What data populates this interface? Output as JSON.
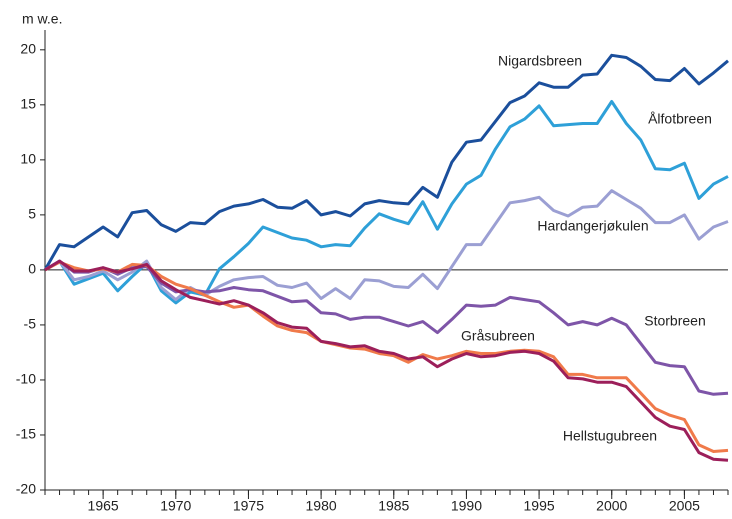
{
  "chart_data": {
    "type": "line",
    "y_label": "m w.e.",
    "x": [
      1961,
      1962,
      1963,
      1964,
      1965,
      1966,
      1967,
      1968,
      1969,
      1970,
      1971,
      1972,
      1973,
      1974,
      1975,
      1976,
      1977,
      1978,
      1979,
      1980,
      1981,
      1982,
      1983,
      1984,
      1985,
      1986,
      1987,
      1988,
      1989,
      1990,
      1991,
      1992,
      1993,
      1994,
      1995,
      1996,
      1997,
      1998,
      1999,
      2000,
      2001,
      2002,
      2003,
      2004,
      2005,
      2006,
      2007,
      2008
    ],
    "xlim": [
      1961,
      2008
    ],
    "xticks": [
      1965,
      1970,
      1975,
      1980,
      1985,
      1990,
      1995,
      2000,
      2005
    ],
    "ylim": [
      -20,
      21.8
    ],
    "yticks": [
      -20,
      -15,
      -10,
      -5,
      0,
      5,
      10,
      15,
      20
    ],
    "series": [
      {
        "name": "Nigardsbreen",
        "color": "#1b4f9c",
        "values": [
          0,
          2.3,
          2.1,
          3.0,
          3.9,
          3.0,
          5.2,
          5.4,
          4.1,
          3.5,
          4.3,
          4.2,
          5.3,
          5.8,
          6.0,
          6.4,
          5.7,
          5.6,
          6.3,
          5.0,
          5.3,
          4.9,
          6.0,
          6.3,
          6.1,
          6.0,
          7.5,
          6.6,
          9.8,
          11.6,
          11.8,
          13.5,
          15.2,
          15.8,
          17.0,
          16.6,
          16.6,
          17.7,
          17.8,
          19.5,
          19.3,
          18.5,
          17.3,
          17.2,
          18.3,
          16.9,
          17.9,
          19.0
        ]
      },
      {
        "name": "Ålfotbreen",
        "color": "#2ea0d8",
        "values": [
          0,
          0.8,
          -1.3,
          -0.8,
          -0.3,
          -1.9,
          -0.6,
          0.6,
          -1.9,
          -3.0,
          -2.0,
          -2.3,
          0.1,
          1.2,
          2.4,
          3.9,
          3.4,
          2.9,
          2.7,
          2.1,
          2.3,
          2.2,
          3.8,
          5.1,
          4.6,
          4.2,
          6.2,
          3.7,
          6.0,
          7.8,
          8.6,
          11.0,
          13.0,
          13.7,
          14.9,
          13.1,
          13.2,
          13.3,
          13.3,
          15.3,
          13.3,
          11.8,
          9.2,
          9.1,
          9.7,
          6.5,
          7.8,
          8.5
        ]
      },
      {
        "name": "Hardangerjøkulen",
        "color": "#9b9fd3",
        "values": [
          0,
          0.8,
          -0.9,
          -0.6,
          -0.1,
          -0.9,
          -0.2,
          0.8,
          -1.6,
          -2.7,
          -1.6,
          -2.3,
          -1.5,
          -0.9,
          -0.7,
          -0.6,
          -1.4,
          -1.6,
          -1.2,
          -2.6,
          -1.7,
          -2.6,
          -0.9,
          -1.0,
          -1.5,
          -1.6,
          -0.4,
          -1.7,
          0.3,
          2.3,
          2.3,
          4.2,
          6.1,
          6.3,
          6.6,
          5.4,
          4.9,
          5.7,
          5.8,
          7.2,
          6.4,
          5.6,
          4.3,
          4.3,
          5.0,
          2.8,
          3.9,
          4.4
        ]
      },
      {
        "name": "Storbreen",
        "color": "#7e55a8",
        "values": [
          0,
          0.8,
          -0.2,
          -0.2,
          0.2,
          -0.4,
          0.2,
          0.3,
          -1.2,
          -2.0,
          -1.8,
          -2.0,
          -1.9,
          -1.6,
          -1.8,
          -1.9,
          -2.4,
          -2.9,
          -2.8,
          -3.9,
          -4.0,
          -4.5,
          -4.3,
          -4.3,
          -4.7,
          -5.1,
          -4.7,
          -5.7,
          -4.5,
          -3.2,
          -3.3,
          -3.2,
          -2.5,
          -2.7,
          -2.9,
          -3.9,
          -5.0,
          -4.7,
          -5.0,
          -4.4,
          -5.0,
          -6.7,
          -8.4,
          -8.7,
          -8.8,
          -11.0,
          -11.3,
          -11.2
        ]
      },
      {
        "name": "Gråsubreen",
        "color": "#f07a4a",
        "values": [
          0,
          0.7,
          0.2,
          -0.1,
          0.1,
          -0.2,
          0.5,
          0.4,
          -0.6,
          -1.3,
          -1.7,
          -2.3,
          -2.9,
          -3.4,
          -3.2,
          -4.2,
          -5.1,
          -5.5,
          -5.7,
          -6.5,
          -6.8,
          -7.1,
          -7.2,
          -7.6,
          -7.8,
          -8.4,
          -7.7,
          -8.1,
          -7.8,
          -7.4,
          -7.6,
          -7.6,
          -7.4,
          -7.3,
          -7.4,
          -7.9,
          -9.5,
          -9.5,
          -9.8,
          -9.8,
          -9.8,
          -11.2,
          -12.6,
          -13.2,
          -13.6,
          -15.9,
          -16.5,
          -16.4
        ]
      },
      {
        "name": "Hellstugubreen",
        "color": "#9c1f5a",
        "values": [
          0,
          0.8,
          -0.1,
          -0.1,
          0.2,
          -0.2,
          0.1,
          0.5,
          -1.0,
          -1.8,
          -2.5,
          -2.8,
          -3.1,
          -2.8,
          -3.2,
          -3.9,
          -4.8,
          -5.2,
          -5.3,
          -6.5,
          -6.7,
          -7.0,
          -6.9,
          -7.4,
          -7.6,
          -8.1,
          -7.9,
          -8.8,
          -8.1,
          -7.6,
          -7.9,
          -7.8,
          -7.5,
          -7.4,
          -7.6,
          -8.3,
          -9.8,
          -9.9,
          -10.2,
          -10.2,
          -10.6,
          -12.0,
          -13.4,
          -14.2,
          -14.5,
          -16.6,
          -17.2,
          -17.3
        ]
      }
    ]
  }
}
